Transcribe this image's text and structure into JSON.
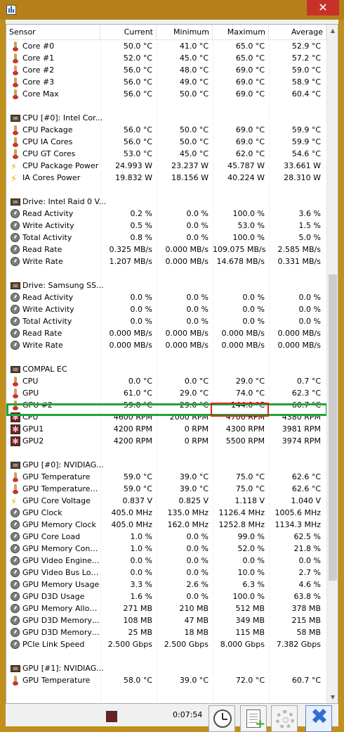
{
  "window": {
    "close_glyph": "✕"
  },
  "columns": [
    "Sensor",
    "Current",
    "Minimum",
    "Maximum",
    "Average"
  ],
  "rows": [
    {
      "type": "sensor",
      "icon": "thermometer-icon",
      "label": "Core #0",
      "current": "50.0 °C",
      "min": "41.0 °C",
      "max": "65.0 °C",
      "avg": "52.9 °C"
    },
    {
      "type": "sensor",
      "icon": "thermometer-icon",
      "label": "Core #1",
      "current": "52.0 °C",
      "min": "45.0 °C",
      "max": "65.0 °C",
      "avg": "57.2 °C"
    },
    {
      "type": "sensor",
      "icon": "thermometer-icon",
      "label": "Core #2",
      "current": "56.0 °C",
      "min": "48.0 °C",
      "max": "69.0 °C",
      "avg": "59.0 °C"
    },
    {
      "type": "sensor",
      "icon": "thermometer-icon",
      "label": "Core #3",
      "current": "56.0 °C",
      "min": "49.0 °C",
      "max": "69.0 °C",
      "avg": "58.9 °C"
    },
    {
      "type": "sensor",
      "icon": "thermometer-icon",
      "label": "Core Max",
      "current": "56.0 °C",
      "min": "50.0 °C",
      "max": "69.0 °C",
      "avg": "60.4 °C"
    },
    {
      "type": "blank"
    },
    {
      "type": "group",
      "icon": "chip-icon",
      "label": "CPU [#0]: Intel Cor..."
    },
    {
      "type": "sensor",
      "icon": "thermometer-icon",
      "label": "CPU Package",
      "current": "56.0 °C",
      "min": "50.0 °C",
      "max": "69.0 °C",
      "avg": "59.9 °C"
    },
    {
      "type": "sensor",
      "icon": "thermometer-icon",
      "label": "CPU IA Cores",
      "current": "56.0 °C",
      "min": "50.0 °C",
      "max": "69.0 °C",
      "avg": "59.9 °C"
    },
    {
      "type": "sensor",
      "icon": "thermometer-icon",
      "label": "CPU GT Cores",
      "current": "53.0 °C",
      "min": "45.0 °C",
      "max": "62.0 °C",
      "avg": "54.6 °C"
    },
    {
      "type": "sensor",
      "icon": "lightning-icon",
      "label": "CPU Package Power",
      "current": "24.993 W",
      "min": "23.237 W",
      "max": "45.787 W",
      "avg": "33.661 W"
    },
    {
      "type": "sensor",
      "icon": "lightning-icon",
      "label": "IA Cores Power",
      "current": "19.832 W",
      "min": "18.156 W",
      "max": "40.224 W",
      "avg": "28.310 W"
    },
    {
      "type": "blank"
    },
    {
      "type": "group",
      "icon": "chip-icon",
      "label": "Drive: Intel Raid 0 V..."
    },
    {
      "type": "sensor",
      "icon": "gauge-icon",
      "label": "Read Activity",
      "current": "0.2 %",
      "min": "0.0 %",
      "max": "100.0 %",
      "avg": "3.6 %"
    },
    {
      "type": "sensor",
      "icon": "gauge-icon",
      "label": "Write Activity",
      "current": "0.5 %",
      "min": "0.0 %",
      "max": "53.0 %",
      "avg": "1.5 %"
    },
    {
      "type": "sensor",
      "icon": "gauge-icon",
      "label": "Total Activity",
      "current": "0.8 %",
      "min": "0.0 %",
      "max": "100.0 %",
      "avg": "5.0 %"
    },
    {
      "type": "sensor",
      "icon": "gauge-icon",
      "label": "Read Rate",
      "current": "0.325 MB/s",
      "min": "0.000 MB/s",
      "max": "109.075 MB/s",
      "avg": "2.585 MB/s"
    },
    {
      "type": "sensor",
      "icon": "gauge-icon",
      "label": "Write Rate",
      "current": "1.207 MB/s",
      "min": "0.000 MB/s",
      "max": "14.678 MB/s",
      "avg": "0.331 MB/s"
    },
    {
      "type": "blank"
    },
    {
      "type": "group",
      "icon": "chip-icon",
      "label": "Drive: Samsung SS..."
    },
    {
      "type": "sensor",
      "icon": "gauge-icon",
      "label": "Read Activity",
      "current": "0.0 %",
      "min": "0.0 %",
      "max": "0.0 %",
      "avg": "0.0 %"
    },
    {
      "type": "sensor",
      "icon": "gauge-icon",
      "label": "Write Activity",
      "current": "0.0 %",
      "min": "0.0 %",
      "max": "0.0 %",
      "avg": "0.0 %"
    },
    {
      "type": "sensor",
      "icon": "gauge-icon",
      "label": "Total Activity",
      "current": "0.0 %",
      "min": "0.0 %",
      "max": "0.0 %",
      "avg": "0.0 %"
    },
    {
      "type": "sensor",
      "icon": "gauge-icon",
      "label": "Read Rate",
      "current": "0.000 MB/s",
      "min": "0.000 MB/s",
      "max": "0.000 MB/s",
      "avg": "0.000 MB/s"
    },
    {
      "type": "sensor",
      "icon": "gauge-icon",
      "label": "Write Rate",
      "current": "0.000 MB/s",
      "min": "0.000 MB/s",
      "max": "0.000 MB/s",
      "avg": "0.000 MB/s"
    },
    {
      "type": "blank"
    },
    {
      "type": "group",
      "icon": "chip-icon",
      "label": "COMPAL EC"
    },
    {
      "type": "sensor",
      "icon": "thermometer-icon",
      "label": "CPU",
      "current": "0.0 °C",
      "min": "0.0 °C",
      "max": "29.0 °C",
      "avg": "0.7 °C"
    },
    {
      "type": "sensor",
      "icon": "thermometer-icon",
      "label": "GPU",
      "current": "61.0 °C",
      "min": "29.0 °C",
      "max": "74.0 °C",
      "avg": "62.3 °C"
    },
    {
      "type": "sensor",
      "icon": "thermometer-icon",
      "label": "GPU #2",
      "current": "59.0 °C",
      "min": "29.0 °C",
      "max": "144.0 °C",
      "avg": "60.7 °C"
    },
    {
      "type": "sensor",
      "icon": "fan-icon",
      "label": "CPU",
      "current": "4600 RPM",
      "min": "2000 RPM",
      "max": "4700 RPM",
      "avg": "4380 RPM"
    },
    {
      "type": "sensor",
      "icon": "fan-icon",
      "label": "GPU1",
      "current": "4200 RPM",
      "min": "0 RPM",
      "max": "4300 RPM",
      "avg": "3981 RPM"
    },
    {
      "type": "sensor",
      "icon": "fan-icon",
      "label": "GPU2",
      "current": "4200 RPM",
      "min": "0 RPM",
      "max": "5500 RPM",
      "avg": "3974 RPM"
    },
    {
      "type": "blank"
    },
    {
      "type": "group",
      "icon": "chip-icon",
      "label": "GPU [#0]: NVIDIAG..."
    },
    {
      "type": "sensor",
      "icon": "thermometer-icon",
      "label": "GPU Temperature",
      "current": "59.0 °C",
      "min": "39.0 °C",
      "max": "75.0 °C",
      "avg": "62.6 °C"
    },
    {
      "type": "sensor",
      "icon": "thermometer-icon",
      "label": "GPU Temperature (...",
      "current": "59.0 °C",
      "min": "39.0 °C",
      "max": "75.0 °C",
      "avg": "62.6 °C"
    },
    {
      "type": "sensor",
      "icon": "lightning-icon",
      "label": "GPU Core Voltage",
      "current": "0.837 V",
      "min": "0.825 V",
      "max": "1.118 V",
      "avg": "1.040 V"
    },
    {
      "type": "sensor",
      "icon": "gauge-icon",
      "label": "GPU Clock",
      "current": "405.0 MHz",
      "min": "135.0 MHz",
      "max": "1126.4 MHz",
      "avg": "1005.6 MHz"
    },
    {
      "type": "sensor",
      "icon": "gauge-icon",
      "label": "GPU Memory Clock",
      "current": "405.0 MHz",
      "min": "162.0 MHz",
      "max": "1252.8 MHz",
      "avg": "1134.3 MHz"
    },
    {
      "type": "sensor",
      "icon": "gauge-icon",
      "label": "GPU Core Load",
      "current": "1.0 %",
      "min": "0.0 %",
      "max": "99.0 %",
      "avg": "62.5 %"
    },
    {
      "type": "sensor",
      "icon": "gauge-icon",
      "label": "GPU Memory Contr...",
      "current": "1.0 %",
      "min": "0.0 %",
      "max": "52.0 %",
      "avg": "21.8 %"
    },
    {
      "type": "sensor",
      "icon": "gauge-icon",
      "label": "GPU Video Engine L...",
      "current": "0.0 %",
      "min": "0.0 %",
      "max": "0.0 %",
      "avg": "0.0 %"
    },
    {
      "type": "sensor",
      "icon": "gauge-icon",
      "label": "GPU Video Bus Load",
      "current": "0.0 %",
      "min": "0.0 %",
      "max": "10.0 %",
      "avg": "2.7 %"
    },
    {
      "type": "sensor",
      "icon": "gauge-icon",
      "label": "GPU Memory Usage",
      "current": "3.3 %",
      "min": "2.6 %",
      "max": "6.3 %",
      "avg": "4.6 %"
    },
    {
      "type": "sensor",
      "icon": "gauge-icon",
      "label": "GPU D3D Usage",
      "current": "1.6 %",
      "min": "0.0 %",
      "max": "100.0 %",
      "avg": "63.8 %"
    },
    {
      "type": "sensor",
      "icon": "gauge-icon",
      "label": "GPU Memory Allocated",
      "current": "271 MB",
      "min": "210 MB",
      "max": "512 MB",
      "avg": "378 MB"
    },
    {
      "type": "sensor",
      "icon": "gauge-icon",
      "label": "GPU D3D Memory D...",
      "current": "108 MB",
      "min": "47 MB",
      "max": "349 MB",
      "avg": "215 MB"
    },
    {
      "type": "sensor",
      "icon": "gauge-icon",
      "label": "GPU D3D Memory D...",
      "current": "25 MB",
      "min": "18 MB",
      "max": "115 MB",
      "avg": "58 MB"
    },
    {
      "type": "sensor",
      "icon": "gauge-icon",
      "label": "PCIe Link Speed",
      "current": "2.500 Gbps",
      "min": "2.500 Gbps",
      "max": "8.000 Gbps",
      "avg": "7.382 Gbps"
    },
    {
      "type": "blank"
    },
    {
      "type": "group",
      "icon": "chip-icon",
      "label": "GPU [#1]: NVIDIAG..."
    },
    {
      "type": "sensor",
      "icon": "thermometer-icon",
      "label": "GPU Temperature",
      "current": "58.0 °C",
      "min": "39.0 °C",
      "max": "72.0 °C",
      "avg": "60.7 °C"
    }
  ],
  "scrollbar": {
    "up_glyph": "▲",
    "down_glyph": "▼"
  },
  "bottom_bar": {
    "timer": "0:07:54",
    "buttons": [
      "clock-icon",
      "report-add-icon",
      "settings-gear-icon",
      "close-x-icon"
    ],
    "close_glyph": "✖",
    "plus_glyph": "+"
  },
  "colors": {
    "titlebar": "#b5801a",
    "highlight_row": "#1fa33a",
    "highlight_cell": "#d9261c",
    "close_button": "#c7312a",
    "close_x": "#2f6fd0"
  }
}
